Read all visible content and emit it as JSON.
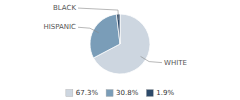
{
  "chart_data": {
    "type": "pie",
    "categories": [
      "WHITE",
      "HISPANIC",
      "BLACK"
    ],
    "values": [
      67.3,
      30.8,
      1.9
    ],
    "value_labels": [
      "67.3%",
      "30.8%",
      "1.9%"
    ],
    "colors": [
      "#cdd6e0",
      "#7a9db8",
      "#2d4a6a"
    ],
    "legend": "bottom"
  }
}
